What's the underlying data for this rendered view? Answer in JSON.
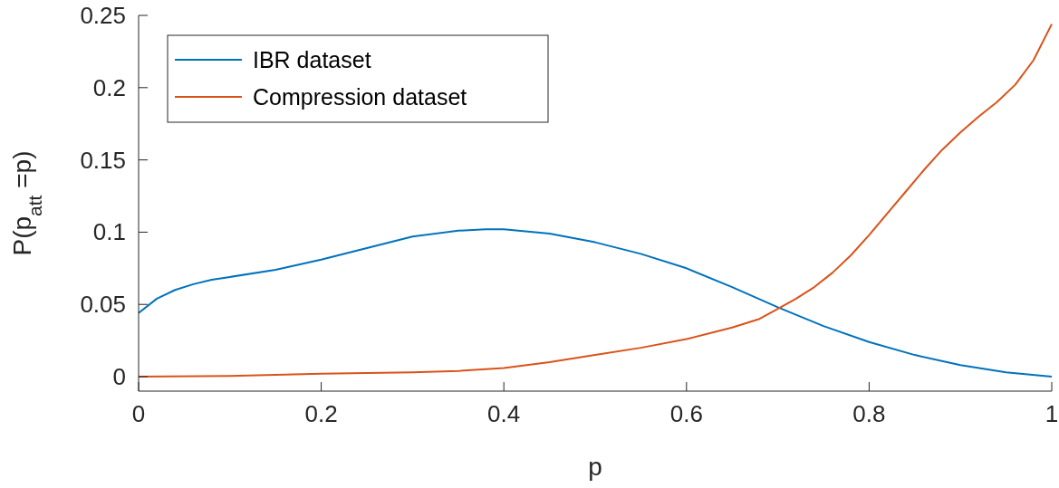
{
  "chart_data": {
    "type": "line",
    "xlabel": "p",
    "ylabel": "P(p$_{att}$ =p)",
    "xlim": [
      0,
      1
    ],
    "xticks": [
      0,
      0.2,
      0.4,
      0.6,
      0.8,
      1
    ],
    "ylim": [
      -0.01,
      0.25
    ],
    "yticks": [
      0,
      0.05,
      0.1,
      0.15,
      0.2,
      0.25
    ],
    "legend": "top left",
    "grid": false,
    "marker": "none",
    "line_style": "solid",
    "series": [
      {
        "name": "IBR dataset",
        "color": "#0072bd",
        "x": [
          0,
          0.02,
          0.04,
          0.06,
          0.08,
          0.1,
          0.15,
          0.2,
          0.25,
          0.3,
          0.35,
          0.38,
          0.4,
          0.45,
          0.5,
          0.55,
          0.6,
          0.65,
          0.7,
          0.75,
          0.8,
          0.85,
          0.9,
          0.95,
          1
        ],
        "values": [
          0.044,
          0.054,
          0.06,
          0.064,
          0.067,
          0.069,
          0.074,
          0.081,
          0.089,
          0.097,
          0.101,
          0.102,
          0.102,
          0.099,
          0.093,
          0.085,
          0.075,
          0.062,
          0.048,
          0.035,
          0.024,
          0.015,
          0.008,
          0.003,
          0
        ]
      },
      {
        "name": "Compression dataset",
        "color": "#d95319",
        "x": [
          0,
          0.1,
          0.2,
          0.3,
          0.35,
          0.4,
          0.45,
          0.5,
          0.55,
          0.6,
          0.65,
          0.68,
          0.7,
          0.72,
          0.74,
          0.76,
          0.78,
          0.8,
          0.82,
          0.84,
          0.86,
          0.88,
          0.9,
          0.92,
          0.94,
          0.96,
          0.98,
          1
        ],
        "values": [
          0,
          0.0005,
          0.002,
          0.003,
          0.004,
          0.006,
          0.01,
          0.015,
          0.02,
          0.026,
          0.034,
          0.04,
          0.047,
          0.054,
          0.062,
          0.072,
          0.084,
          0.098,
          0.113,
          0.128,
          0.143,
          0.157,
          0.169,
          0.18,
          0.19,
          0.202,
          0.219,
          0.244
        ]
      }
    ]
  }
}
